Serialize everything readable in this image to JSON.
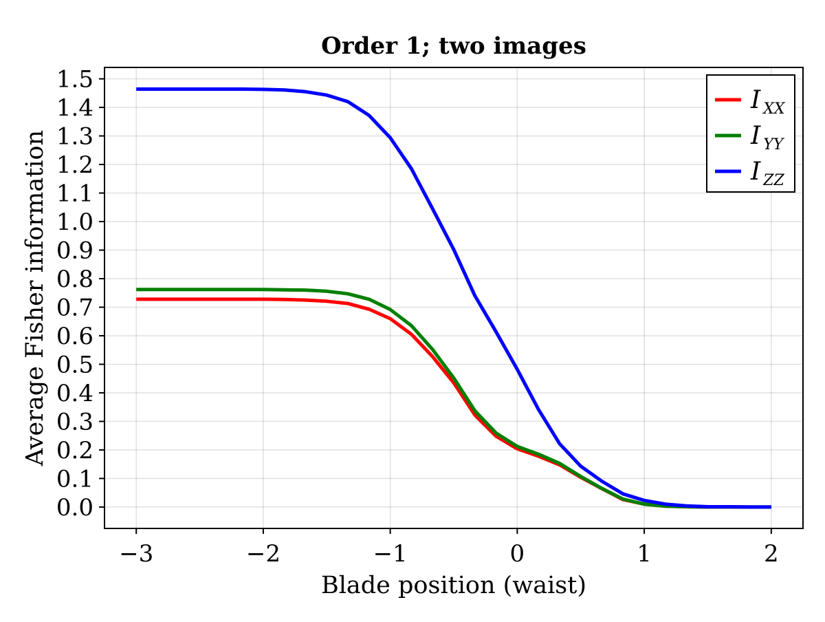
{
  "chart_data": {
    "type": "line",
    "title": "Order 1; two images",
    "xlabel": "Blade position (waist)",
    "ylabel": "Average Fisher information",
    "xlim": [
      -3.25,
      2.25
    ],
    "ylim": [
      -0.075,
      1.54
    ],
    "xticks": [
      -3,
      -2,
      -1,
      0,
      1,
      2
    ],
    "xtick_labels": [
      "−3",
      "−2",
      "−1",
      "0",
      "1",
      "2"
    ],
    "yticks": [
      0.0,
      0.1,
      0.2,
      0.3,
      0.4,
      0.5,
      0.6,
      0.7,
      0.8,
      0.9,
      1.0,
      1.1,
      1.2,
      1.3,
      1.4,
      1.5
    ],
    "ytick_labels": [
      "0.0",
      "0.1",
      "0.2",
      "0.3",
      "0.4",
      "0.5",
      "0.6",
      "0.7",
      "0.8",
      "0.9",
      "1.0",
      "1.1",
      "1.2",
      "1.3",
      "1.4",
      "1.5"
    ],
    "grid": true,
    "legend_position": "top-right",
    "x": [
      -3.0,
      -2.833,
      -2.667,
      -2.5,
      -2.333,
      -2.167,
      -2.0,
      -1.833,
      -1.667,
      -1.5,
      -1.333,
      -1.167,
      -1.0,
      -0.833,
      -0.667,
      -0.5,
      -0.333,
      -0.167,
      0.0,
      0.167,
      0.333,
      0.5,
      0.667,
      0.833,
      1.0,
      1.167,
      1.333,
      1.5,
      1.667,
      1.833,
      2.0
    ],
    "series": [
      {
        "name": "I",
        "subscript": "XX",
        "color": "#ff0000",
        "values": [
          0.728,
          0.728,
          0.728,
          0.728,
          0.728,
          0.728,
          0.728,
          0.727,
          0.725,
          0.721,
          0.713,
          0.693,
          0.66,
          0.605,
          0.527,
          0.435,
          0.322,
          0.248,
          0.204,
          0.178,
          0.148,
          0.104,
          0.064,
          0.026,
          0.01,
          0.003,
          0.001,
          0.0,
          0.0,
          0.0,
          0.0
        ]
      },
      {
        "name": "I",
        "subscript": "YY",
        "color": "#008000",
        "values": [
          0.762,
          0.762,
          0.762,
          0.762,
          0.762,
          0.762,
          0.762,
          0.761,
          0.76,
          0.756,
          0.747,
          0.728,
          0.692,
          0.635,
          0.552,
          0.452,
          0.337,
          0.259,
          0.212,
          0.185,
          0.153,
          0.107,
          0.065,
          0.028,
          0.01,
          0.003,
          0.001,
          0.0,
          0.0,
          0.0,
          0.0
        ]
      },
      {
        "name": "I",
        "subscript": "ZZ",
        "color": "#0000ff",
        "values": [
          1.464,
          1.464,
          1.464,
          1.464,
          1.464,
          1.464,
          1.463,
          1.461,
          1.455,
          1.443,
          1.42,
          1.372,
          1.294,
          1.185,
          1.045,
          0.902,
          0.74,
          0.614,
          0.482,
          0.342,
          0.222,
          0.143,
          0.09,
          0.046,
          0.023,
          0.01,
          0.004,
          0.001,
          0.001,
          0.0,
          0.0
        ]
      }
    ]
  }
}
